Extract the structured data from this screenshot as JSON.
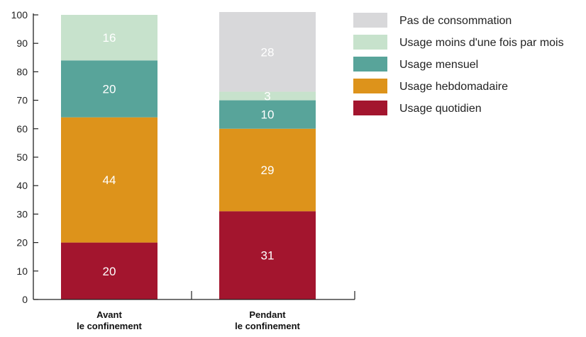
{
  "chart_data": {
    "type": "bar",
    "stacked": true,
    "title": "",
    "xlabel": "",
    "ylabel": "",
    "ylim": [
      0,
      100
    ],
    "yticks": [
      0,
      10,
      20,
      30,
      40,
      50,
      60,
      70,
      80,
      90,
      100
    ],
    "grid": false,
    "legend_position": "right",
    "categories": [
      [
        "Avant",
        "le confinement"
      ],
      [
        "Pendant",
        "le confinement"
      ]
    ],
    "series": [
      {
        "name": "Usage quotidien",
        "color": "#a3152e",
        "values": [
          20,
          31
        ]
      },
      {
        "name": "Usage hebdomadaire",
        "color": "#dd931b",
        "values": [
          44,
          29
        ]
      },
      {
        "name": "Usage mensuel",
        "color": "#58a49a",
        "values": [
          20,
          10
        ]
      },
      {
        "name": "Usage moins d'une fois par mois",
        "color": "#c7e2cc",
        "values": [
          16,
          3
        ]
      },
      {
        "name": "Pas de consommation",
        "color": "#d8d8da",
        "values": [
          0,
          28
        ]
      }
    ],
    "legend_order": [
      "Pas de consommation",
      "Usage moins d'une fois par mois",
      "Usage mensuel",
      "Usage hebdomadaire",
      "Usage quotidien"
    ]
  }
}
